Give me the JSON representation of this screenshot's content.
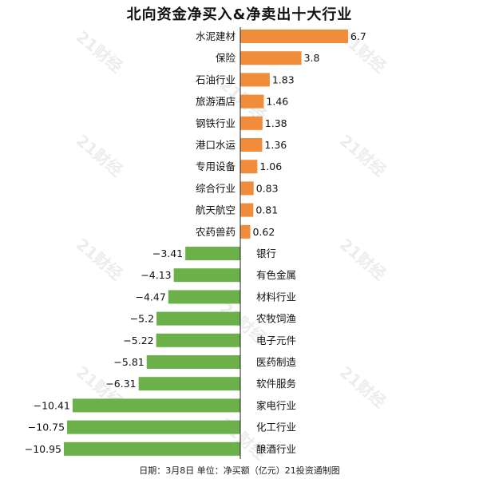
{
  "title": "北向资金净买入&净卖出十大行业",
  "footer": "日期：3月8日 单位：净买额（亿元）21投资通制图",
  "watermark": "21财经",
  "colors": {
    "buy": "#F08C3A",
    "sell": "#6CB04A",
    "axis": "#222222"
  },
  "chart_data": {
    "type": "bar",
    "orientation": "horizontal",
    "title": "北向资金净买入&净卖出十大行业",
    "categories": [
      "水泥建材",
      "保险",
      "石油行业",
      "旅游酒店",
      "钢铁行业",
      "港口水运",
      "专用设备",
      "综合行业",
      "航天航空",
      "农药兽药",
      "银行",
      "有色金属",
      "材料行业",
      "农牧饲渔",
      "电子元件",
      "医药制造",
      "软件服务",
      "家电行业",
      "化工行业",
      "酿酒行业"
    ],
    "values": [
      6.7,
      3.8,
      1.83,
      1.46,
      1.38,
      1.36,
      1.06,
      0.83,
      0.81,
      0.62,
      -3.41,
      -4.13,
      -4.47,
      -5.2,
      -5.22,
      -5.81,
      -6.31,
      -10.41,
      -10.75,
      -10.95
    ],
    "value_labels": [
      "6.7",
      "3.8",
      "1.83",
      "1.46",
      "1.38",
      "1.36",
      "1.06",
      "0.83",
      "0.81",
      "0.62",
      "−3.41",
      "−4.13",
      "−4.47",
      "−5.2",
      "−5.22",
      "−5.81",
      "−6.31",
      "−10.41",
      "−10.75",
      "−10.95"
    ],
    "xlim": [
      -10.95,
      6.7
    ],
    "unit": "净买额（亿元）",
    "grid": false,
    "legend": "none"
  }
}
